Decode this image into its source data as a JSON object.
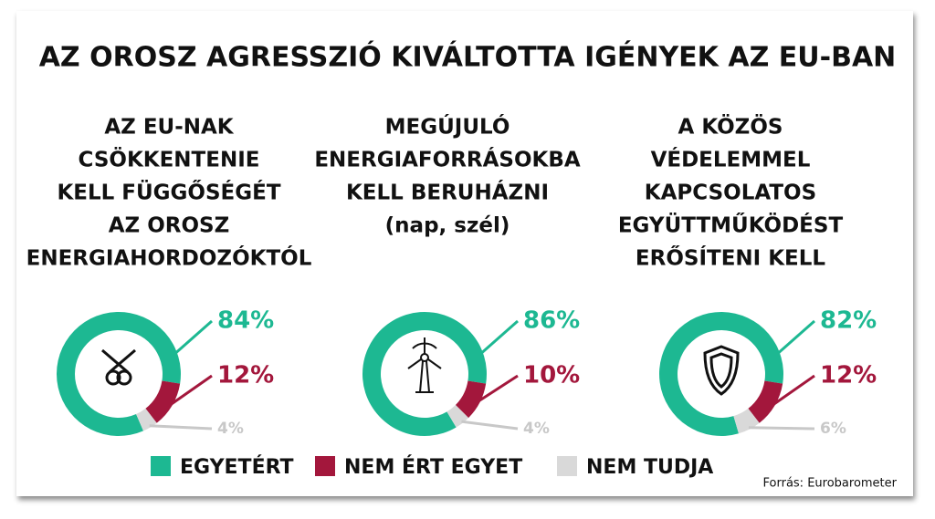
{
  "chart_data": {
    "type": "donut",
    "title": "AZ OROSZ AGRESSZIÓ KIVÁLTOTTA IGÉNYEK AZ EU-BAN",
    "categories": [
      "EGYETÉRT",
      "NEM ÉRT EGYET",
      "NEM TUDJA"
    ],
    "colors": [
      "#1db892",
      "#a3173c",
      "#d9d9d9"
    ],
    "panels": [
      {
        "title": [
          "AZ EU-NAK",
          "CSÖKKENTENIE",
          "KELL FÜGGŐSÉGÉT",
          "AZ OROSZ",
          "ENERGIAHORDOZÓKTÓL"
        ],
        "values": [
          84,
          12,
          4
        ],
        "value_labels": [
          "84%",
          "12%",
          "4%"
        ]
      },
      {
        "title": [
          "MEGÚJULÓ",
          "ENERGIAFORRÁSOKBA",
          "KELL BERUHÁZNI",
          "(nap, szél)"
        ],
        "values": [
          86,
          10,
          4
        ],
        "value_labels": [
          "86%",
          "10%",
          "4%"
        ]
      },
      {
        "title": [
          "A KÖZÖS",
          "VÉDELEMMEL",
          "KAPCSOLATOS",
          "EGYÜTTMŰKÖDÉST",
          "ERŐSÍTENI KELL"
        ],
        "values": [
          82,
          12,
          6
        ],
        "value_labels": [
          "82%",
          "12%",
          "6%"
        ]
      }
    ],
    "source": "Forrás: Eurobarometer"
  }
}
